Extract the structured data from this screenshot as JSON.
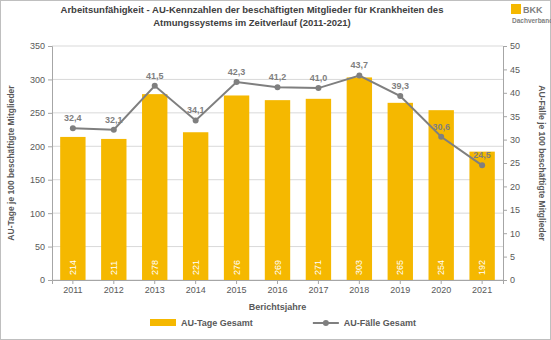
{
  "chart_data": {
    "type": "bar",
    "title": [
      "Arbeitsunfähigkeit - AU-Kennzahlen der beschäftigten Mitglieder für Krankheiten des",
      "Atmungssystems im Zeitverlauf (2011-2021)"
    ],
    "annotations": [
      "BKK",
      "Dachverband"
    ],
    "x_label": "Berichtsjahre",
    "y_label": "AU-Tage je 100 beschäftigte Mitglieder",
    "y2_label": "AU-Fälle je 100 beschäftigte Mitglieder",
    "categories": [
      "2011",
      "2012",
      "2013",
      "2014",
      "2015",
      "2016",
      "2017",
      "2018",
      "2019",
      "2020",
      "2021"
    ],
    "series": [
      {
        "name": "AU-Tage Gesamt",
        "type": "bar",
        "color": "#f5b800",
        "data_labels": true,
        "values": [
          214,
          211,
          278,
          221,
          276,
          269,
          271,
          303,
          265,
          254,
          192
        ]
      },
      {
        "name": "AU-Fälle Gesamt",
        "type": "line",
        "axis": "y2",
        "color": "#7f7f7f",
        "marker": "circle",
        "data_labels": true,
        "values": [
          32.4,
          32.1,
          41.5,
          34.1,
          42.3,
          41.2,
          41.0,
          43.7,
          39.3,
          30.6,
          24.5
        ],
        "value_labels": [
          "32,4",
          "32,1",
          "41,5",
          "34,1",
          "42,3",
          "41,2",
          "41,0",
          "43,7",
          "39,3",
          "30,6",
          "24,5"
        ]
      }
    ],
    "ylim": [
      0,
      350
    ],
    "yticks": [
      0,
      50,
      100,
      150,
      200,
      250,
      300,
      350
    ],
    "y2lim": [
      0,
      50
    ],
    "y2ticks": [
      0,
      5,
      10,
      15,
      20,
      25,
      30,
      35,
      40,
      45,
      50
    ],
    "grid": true,
    "legend": "bottom"
  }
}
